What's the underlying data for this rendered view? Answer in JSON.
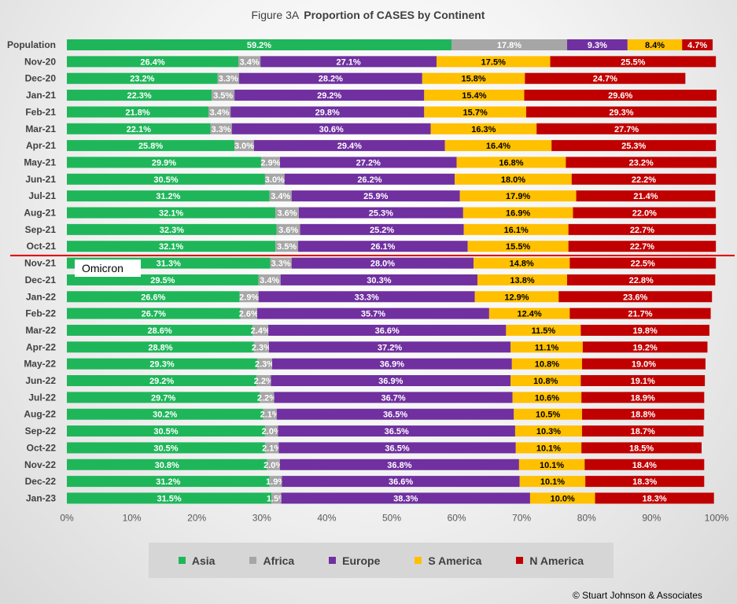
{
  "chart_data": {
    "type": "bar",
    "orientation": "horizontal",
    "stacked": true,
    "title_prefix": "Figure  3A",
    "title": "Proportion of CASES by Continent",
    "xlim": [
      0,
      100
    ],
    "xticks": [
      "0%",
      "10%",
      "20%",
      "30%",
      "40%",
      "50%",
      "60%",
      "70%",
      "80%",
      "90%",
      "100%"
    ],
    "legend_position": "bottom",
    "grid": false,
    "categories": [
      "Population",
      "Nov-20",
      "Dec-20",
      "Jan-21",
      "Feb-21",
      "Mar-21",
      "Apr-21",
      "May-21",
      "Jun-21",
      "Jul-21",
      "Aug-21",
      "Sep-21",
      "Oct-21",
      "Nov-21",
      "Dec-21",
      "Jan-22",
      "Feb-22",
      "Mar-22",
      "Apr-22",
      "May-22",
      "Jun-22",
      "Jul-22",
      "Aug-22",
      "Sep-22",
      "Oct-22",
      "Nov-22",
      "Dec-22",
      "Jan-23"
    ],
    "series": [
      {
        "name": "Asia",
        "color": "#1fb65a",
        "label_color": "#ffffff",
        "values": [
          59.2,
          26.4,
          23.2,
          22.3,
          21.8,
          22.1,
          25.8,
          29.9,
          30.5,
          31.2,
          32.1,
          32.3,
          32.1,
          31.3,
          29.5,
          26.6,
          26.7,
          28.6,
          28.8,
          29.3,
          29.2,
          29.7,
          30.2,
          30.5,
          30.5,
          30.8,
          31.2,
          31.5
        ]
      },
      {
        "name": "Africa",
        "color": "#a6a6a6",
        "label_color": "#ffffff",
        "values": [
          17.8,
          3.4,
          3.3,
          3.5,
          3.4,
          3.3,
          3.0,
          2.9,
          3.0,
          3.4,
          3.6,
          3.6,
          3.5,
          3.3,
          3.4,
          2.9,
          2.6,
          2.4,
          2.3,
          2.3,
          2.2,
          2.2,
          2.1,
          2.0,
          2.1,
          2.0,
          1.9,
          1.5
        ]
      },
      {
        "name": "Europe",
        "color": "#7030a0",
        "label_color": "#ffffff",
        "values": [
          9.3,
          27.1,
          28.2,
          29.2,
          29.8,
          30.6,
          29.4,
          27.2,
          26.2,
          25.9,
          25.3,
          25.2,
          26.1,
          28.0,
          30.3,
          33.3,
          35.7,
          36.6,
          37.2,
          36.9,
          36.9,
          36.7,
          36.5,
          36.5,
          36.5,
          36.8,
          36.6,
          38.3
        ]
      },
      {
        "name": "S America",
        "color": "#ffc000",
        "label_color": "#000000",
        "values": [
          8.4,
          17.5,
          15.8,
          15.4,
          15.7,
          16.3,
          16.4,
          16.8,
          18.0,
          17.9,
          16.9,
          16.1,
          15.5,
          14.8,
          13.8,
          12.9,
          12.4,
          11.5,
          11.1,
          10.8,
          10.8,
          10.6,
          10.5,
          10.3,
          10.1,
          10.1,
          10.1,
          10.0
        ]
      },
      {
        "name": "N America",
        "color": "#c00000",
        "label_color": "#ffffff",
        "values": [
          4.7,
          25.5,
          24.7,
          29.6,
          29.3,
          27.7,
          25.3,
          23.2,
          22.2,
          21.4,
          22.0,
          22.7,
          22.7,
          22.5,
          22.8,
          23.6,
          21.7,
          19.8,
          19.2,
          19.0,
          19.1,
          18.9,
          18.8,
          18.7,
          18.5,
          18.4,
          18.3,
          18.3
        ]
      }
    ],
    "annotations": [
      {
        "text": "Omicron",
        "after_category": "Oct-21",
        "line_color": "#e00000"
      }
    ]
  },
  "footer": {
    "copyright": "© Stuart Johnson & Associates"
  }
}
